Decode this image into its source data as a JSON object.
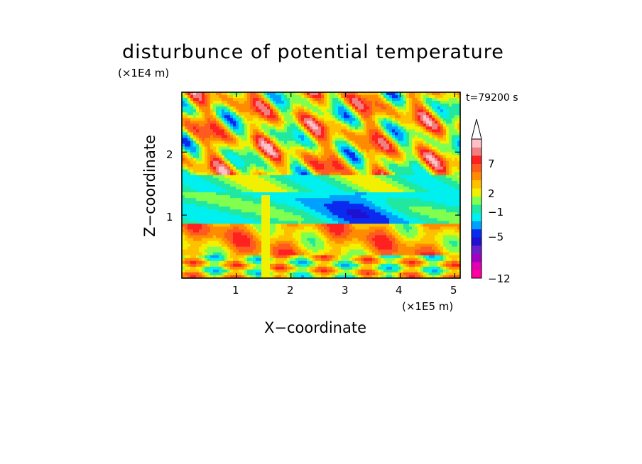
{
  "chart_data": {
    "type": "heatmap",
    "title": "disturbunce of potential temperature",
    "xlabel": "X−coordinate",
    "ylabel": "Z−coordinate",
    "x_unit": "(×1E5 m)",
    "y_unit": "(×1E4 m)",
    "time_label": "t=79200 s",
    "xlim": [
      0,
      5.1
    ],
    "ylim": [
      0,
      2.95
    ],
    "x_ticks": [
      "1",
      "2",
      "3",
      "4",
      "5"
    ],
    "y_ticks": [
      "1",
      "2"
    ],
    "colorbar": {
      "labels": [
        "7",
        "2",
        "−1",
        "−5",
        "−12"
      ],
      "colors": [
        "#ff00a0",
        "#e000b0",
        "#a000c0",
        "#6a20c8",
        "#2010d0",
        "#0a2af0",
        "#00a0ff",
        "#00f0f0",
        "#20e8a0",
        "#80ff50",
        "#f0f000",
        "#ffc000",
        "#ff8c00",
        "#ff5a20",
        "#ff2020",
        "#f08080",
        "#ffc0c8"
      ],
      "extend_top": true
    }
  }
}
